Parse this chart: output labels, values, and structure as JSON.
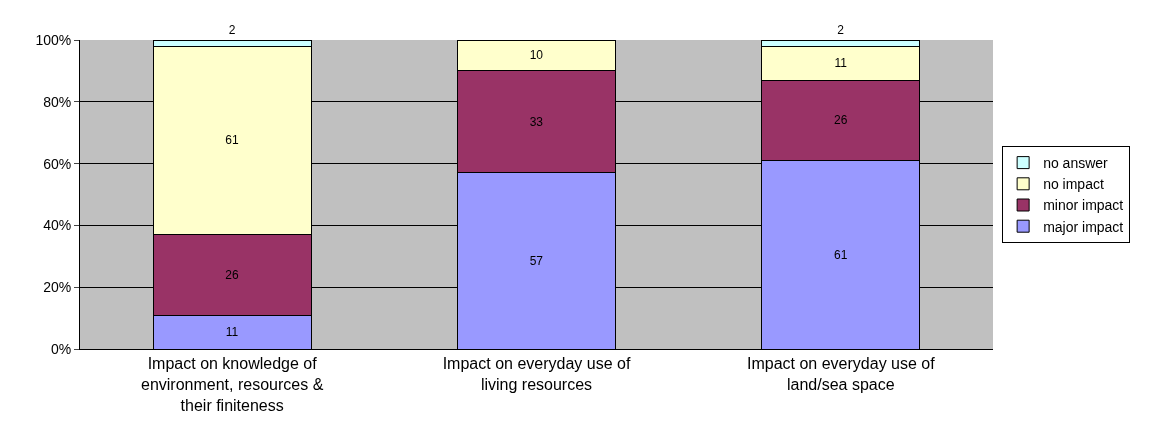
{
  "chart_data": {
    "type": "bar",
    "stacked": true,
    "categories": [
      "Impact on knowledge of environment, resources & their finiteness",
      "Impact on everyday use of living resources",
      "Impact on everyday use of land/sea space"
    ],
    "series": [
      {
        "name": "major impact",
        "color": "#9999ff",
        "values": [
          11,
          57,
          61
        ]
      },
      {
        "name": "minor impact",
        "color": "#993366",
        "values": [
          26,
          33,
          26
        ]
      },
      {
        "name": "no impact",
        "color": "#ffffcc",
        "values": [
          61,
          10,
          11
        ]
      },
      {
        "name": "no answer",
        "color": "#ccffff",
        "values": [
          2,
          null,
          2
        ]
      }
    ],
    "ylim": [
      0,
      100
    ],
    "yticks": [
      {
        "value": 0,
        "label": "0%"
      },
      {
        "value": 20,
        "label": "20%"
      },
      {
        "value": 40,
        "label": "40%"
      },
      {
        "value": 60,
        "label": "60%"
      },
      {
        "value": 80,
        "label": "80%"
      },
      {
        "value": 100,
        "label": "100%"
      }
    ],
    "grid": "y",
    "legend": "right",
    "data_labels": true
  }
}
